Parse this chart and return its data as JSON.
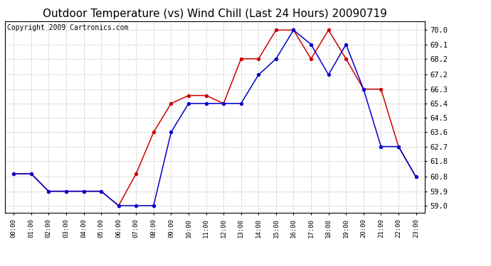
{
  "title": "Outdoor Temperature (vs) Wind Chill (Last 24 Hours) 20090719",
  "copyright": "Copyright 2009 Cartronics.com",
  "x_labels": [
    "00:00",
    "01:00",
    "02:00",
    "03:00",
    "04:00",
    "05:00",
    "06:00",
    "07:00",
    "08:00",
    "09:00",
    "10:00",
    "11:00",
    "12:00",
    "13:00",
    "14:00",
    "15:00",
    "16:00",
    "17:00",
    "18:00",
    "19:00",
    "20:00",
    "21:00",
    "22:00",
    "23:00"
  ],
  "temp_red": [
    61.0,
    61.0,
    59.9,
    59.9,
    59.9,
    59.9,
    59.0,
    61.0,
    63.6,
    65.4,
    65.9,
    65.9,
    65.4,
    68.2,
    68.2,
    70.0,
    70.0,
    68.2,
    70.0,
    68.2,
    66.3,
    66.3,
    62.7,
    60.8
  ],
  "wind_chill_blue": [
    61.0,
    61.0,
    59.9,
    59.9,
    59.9,
    59.9,
    59.0,
    59.0,
    59.0,
    63.6,
    65.4,
    65.4,
    65.4,
    65.4,
    67.2,
    68.2,
    70.0,
    69.1,
    67.2,
    69.1,
    66.3,
    62.7,
    62.7,
    60.8
  ],
  "y_ticks": [
    59.0,
    59.9,
    60.8,
    61.8,
    62.7,
    63.6,
    64.5,
    65.4,
    66.3,
    67.2,
    68.2,
    69.1,
    70.0
  ],
  "ylim": [
    58.55,
    70.55
  ],
  "color_red": "#cc0000",
  "color_blue": "#0000cc",
  "bg_color": "#ffffff",
  "grid_color": "#cccccc",
  "title_fontsize": 11,
  "copyright_fontsize": 7
}
